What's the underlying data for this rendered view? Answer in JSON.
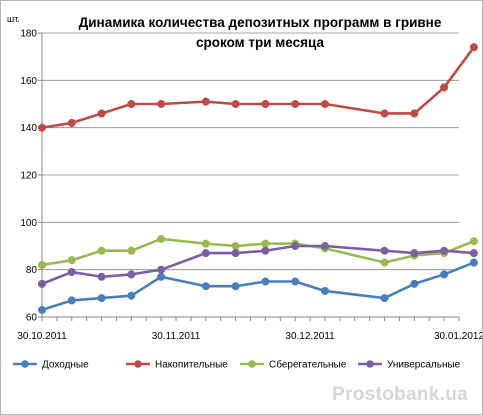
{
  "chart_data": {
    "type": "line",
    "title": "Динамика количества депозитных программ в гривне сроком три месяца",
    "title_lines": [
      "Динамика количества депозитных программ в гривне",
      "сроком три месяца"
    ],
    "ylabel": "шт.",
    "xlabel": "",
    "ylim": [
      60,
      180
    ],
    "yticks": [
      60,
      80,
      100,
      120,
      140,
      160,
      180
    ],
    "x": [
      0,
      7,
      14,
      21,
      28,
      35,
      42,
      49,
      56,
      63,
      70,
      77,
      84,
      91,
      98,
      105,
      112,
      119,
      126,
      133,
      140,
      147,
      154,
      161,
      168,
      175,
      182,
      189,
      196
    ],
    "x_domain": [
      0,
      196
    ],
    "xticks": [
      {
        "x": 0,
        "label": "30.10.2011"
      },
      {
        "x": 63,
        "label": "30.11.2011"
      },
      {
        "x": 126,
        "label": "30.12.2011"
      },
      {
        "x": 196,
        "label": "30.01.2012"
      }
    ],
    "grid": true,
    "legend_position": "bottom",
    "series": [
      {
        "name": "Доходные",
        "color": "#4a7ebb",
        "x": [
          0,
          14,
          28,
          42,
          56,
          77,
          91,
          105,
          119,
          133,
          161,
          175,
          189,
          203
        ],
        "values": [
          63,
          67,
          68,
          69,
          77,
          73,
          73,
          75,
          75,
          71,
          68,
          74,
          78,
          83
        ]
      },
      {
        "name": "Накопительные",
        "color": "#be4b48",
        "x": [
          0,
          14,
          28,
          42,
          56,
          77,
          91,
          105,
          119,
          133,
          161,
          175,
          189,
          203
        ],
        "values": [
          140,
          142,
          146,
          150,
          150,
          151,
          150,
          150,
          150,
          150,
          146,
          146,
          157,
          174
        ]
      },
      {
        "name": "Сберегательные",
        "color": "#98b954",
        "x": [
          0,
          14,
          28,
          42,
          56,
          77,
          91,
          105,
          119,
          133,
          161,
          175,
          189,
          203
        ],
        "values": [
          82,
          84,
          88,
          88,
          93,
          91,
          90,
          91,
          91,
          89,
          83,
          86,
          87,
          92
        ]
      },
      {
        "name": "Универсальные",
        "color": "#7d5fa0",
        "x": [
          0,
          14,
          28,
          42,
          56,
          77,
          91,
          105,
          119,
          133,
          161,
          175,
          189,
          203
        ],
        "values": [
          74,
          79,
          77,
          78,
          80,
          87,
          87,
          88,
          90,
          90,
          88,
          87,
          88,
          87
        ]
      }
    ]
  },
  "watermark": "Prostobank.ua",
  "colors": {
    "grid": "#878787",
    "axis": "#878787",
    "text": "#000000"
  }
}
